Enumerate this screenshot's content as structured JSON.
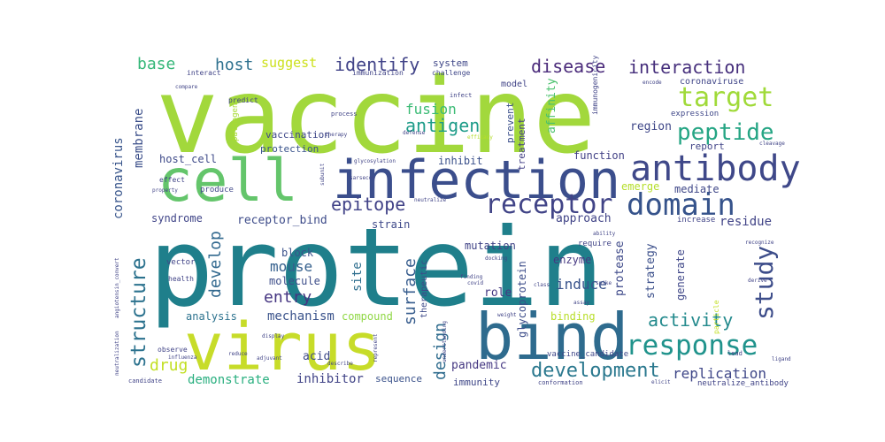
{
  "words": [
    {
      "text": "protein",
      "color": "#1f7f8b"
    },
    {
      "text": "vaccine",
      "color": "#a2d83c"
    },
    {
      "text": "virus",
      "color": "#c7dc29"
    },
    {
      "text": "bind",
      "color": "#2e6b8e"
    },
    {
      "text": "infection",
      "color": "#3b4e8c"
    },
    {
      "text": "cell",
      "color": "#64c56b"
    },
    {
      "text": "antibody",
      "color": "#3f4889"
    },
    {
      "text": "receptor",
      "color": "#414487"
    },
    {
      "text": "domain",
      "color": "#36538b"
    },
    {
      "text": "target",
      "color": "#a0da39"
    },
    {
      "text": "response",
      "color": "#20938c"
    },
    {
      "text": "study",
      "color": "#3d4d8a"
    },
    {
      "text": "development",
      "color": "#2a788e"
    },
    {
      "text": "peptide",
      "color": "#25a584"
    },
    {
      "text": "structure",
      "color": "#2c728e"
    },
    {
      "text": "interaction",
      "color": "#462f7c"
    },
    {
      "text": "identify",
      "color": "#414388"
    },
    {
      "text": "disease",
      "color": "#4b2b7b"
    },
    {
      "text": "epitope",
      "color": "#414287"
    },
    {
      "text": "antigen",
      "color": "#1e9c89"
    },
    {
      "text": "fusion",
      "color": "#3bbb75"
    },
    {
      "text": "host",
      "color": "#2d708e"
    },
    {
      "text": "base",
      "color": "#35b779"
    },
    {
      "text": "suggest",
      "color": "#cde11d"
    },
    {
      "text": "activity",
      "color": "#238a8d"
    },
    {
      "text": "design",
      "color": "#2f6c8e"
    },
    {
      "text": "drug",
      "color": "#c2df23"
    },
    {
      "text": "replication",
      "color": "#3f4788"
    },
    {
      "text": "surface",
      "color": "#365c8d"
    },
    {
      "text": "develop",
      "color": "#31688e"
    },
    {
      "text": "mouse",
      "color": "#35608d"
    },
    {
      "text": "entry",
      "color": "#453581"
    },
    {
      "text": "mechanism",
      "color": "#3a538b"
    },
    {
      "text": "induce",
      "color": "#3a548c"
    },
    {
      "text": "membrane",
      "color": "#3c4f8a"
    },
    {
      "text": "coronavirus",
      "color": "#39568c"
    },
    {
      "text": "host_cell",
      "color": "#3e4a89"
    },
    {
      "text": "receptor_bind",
      "color": "#3e4c8a"
    },
    {
      "text": "syndrome",
      "color": "#404588"
    },
    {
      "text": "strain",
      "color": "#3e4989"
    },
    {
      "text": "mutation",
      "color": "#414487"
    },
    {
      "text": "approach",
      "color": "#414487"
    },
    {
      "text": "mediate",
      "color": "#3f4788"
    },
    {
      "text": "emerge",
      "color": "#b5de2b"
    },
    {
      "text": "function",
      "color": "#424186"
    },
    {
      "text": "treatment",
      "color": "#423f85"
    },
    {
      "text": "prevent",
      "color": "#3c508b"
    },
    {
      "text": "affinity",
      "color": "#4ac16d"
    },
    {
      "text": "vaccination",
      "color": "#3f4889"
    },
    {
      "text": "protection",
      "color": "#3a548c"
    },
    {
      "text": "inhibit",
      "color": "#3b518b"
    },
    {
      "text": "inhibitor",
      "color": "#414487"
    },
    {
      "text": "demonstrate",
      "color": "#29af7f"
    },
    {
      "text": "pandemic",
      "color": "#453882"
    },
    {
      "text": "sequence",
      "color": "#3b528b"
    },
    {
      "text": "immunity",
      "color": "#3f4788"
    },
    {
      "text": "acid",
      "color": "#3e4a89"
    },
    {
      "text": "analysis",
      "color": "#2c728e"
    },
    {
      "text": "block",
      "color": "#3b528b"
    },
    {
      "text": "molecule",
      "color": "#3d4e8a"
    },
    {
      "text": "site",
      "color": "#2e6e8e"
    },
    {
      "text": "role",
      "color": "#443983"
    },
    {
      "text": "compound",
      "color": "#8fd744"
    },
    {
      "text": "binding",
      "color": "#b8de29"
    },
    {
      "text": "enzyme",
      "color": "#453781"
    },
    {
      "text": "protease",
      "color": "#3e4989"
    },
    {
      "text": "strategy",
      "color": "#3c508b"
    },
    {
      "text": "generate",
      "color": "#3f4788"
    },
    {
      "text": "residue",
      "color": "#414487"
    },
    {
      "text": "report",
      "color": "#414487"
    },
    {
      "text": "region",
      "color": "#3f4788"
    },
    {
      "text": "expression",
      "color": "#3f4788"
    },
    {
      "text": "coronaviruse",
      "color": "#404688"
    },
    {
      "text": "therapeutic",
      "color": "#3e4a89"
    },
    {
      "text": "glycoprotein",
      "color": "#3d4d8a"
    },
    {
      "text": "vaccine_candidate",
      "color": "#3f4788"
    },
    {
      "text": "neutralize_antibody",
      "color": "#414487"
    },
    {
      "text": "system",
      "color": "#3f4788"
    },
    {
      "text": "model",
      "color": "#414487"
    },
    {
      "text": "immunogenicity",
      "color": "#414487"
    },
    {
      "text": "produce",
      "color": "#3f4788"
    },
    {
      "text": "require",
      "color": "#414487"
    },
    {
      "text": "increase",
      "color": "#414487"
    },
    {
      "text": "challenge",
      "color": "#3f4788"
    },
    {
      "text": "immunization",
      "color": "#414487"
    },
    {
      "text": "interact",
      "color": "#414487"
    },
    {
      "text": "compare",
      "color": "#414487"
    },
    {
      "text": "predict",
      "color": "#414487"
    },
    {
      "text": "pathogen",
      "color": "#a8db34"
    },
    {
      "text": "effect",
      "color": "#414487"
    },
    {
      "text": "vector",
      "color": "#414487"
    },
    {
      "text": "health",
      "color": "#414487"
    },
    {
      "text": "observe",
      "color": "#414487"
    },
    {
      "text": "candidate",
      "color": "#414487"
    },
    {
      "text": "process",
      "color": "#414487"
    },
    {
      "text": "therapy",
      "color": "#414487"
    },
    {
      "text": "defense",
      "color": "#414487"
    },
    {
      "text": "efficacy",
      "color": "#b5de2b"
    },
    {
      "text": "infect",
      "color": "#414487"
    },
    {
      "text": "glycosylation",
      "color": "#414487"
    },
    {
      "text": "neutralize",
      "color": "#414487"
    },
    {
      "text": "covid",
      "color": "#414487"
    },
    {
      "text": "cleavage",
      "color": "#414487"
    },
    {
      "text": "recognize",
      "color": "#414487"
    },
    {
      "text": "docking",
      "color": "#414487"
    },
    {
      "text": "spike",
      "color": "#414487"
    },
    {
      "text": "particle",
      "color": "#c2df23"
    },
    {
      "text": "elicit",
      "color": "#414487"
    },
    {
      "text": "lead",
      "color": "#414487"
    },
    {
      "text": "conformation",
      "color": "#414487"
    },
    {
      "text": "ligand",
      "color": "#414487"
    },
    {
      "text": "derive",
      "color": "#414487"
    },
    {
      "text": "assay",
      "color": "#414487"
    },
    {
      "text": "reduce",
      "color": "#414487"
    },
    {
      "text": "adjuvant",
      "color": "#414487"
    },
    {
      "text": "describe",
      "color": "#414487"
    },
    {
      "text": "display",
      "color": "#414487"
    },
    {
      "text": "influenza",
      "color": "#414487"
    },
    {
      "text": "understanding",
      "color": "#414487"
    },
    {
      "text": "neutralization",
      "color": "#414487"
    },
    {
      "text": "angiotensin_convert",
      "color": "#414487"
    },
    {
      "text": "sarsecov",
      "color": "#414487"
    },
    {
      "text": "subunit",
      "color": "#414487"
    },
    {
      "text": "finding",
      "color": "#414487"
    },
    {
      "text": "class",
      "color": "#414487"
    },
    {
      "text": "property",
      "color": "#414487"
    },
    {
      "text": "represent",
      "color": "#414487"
    },
    {
      "text": "encode",
      "color": "#414487"
    },
    {
      "text": "weight",
      "color": "#414487"
    },
    {
      "text": "ability",
      "color": "#414487"
    }
  ]
}
